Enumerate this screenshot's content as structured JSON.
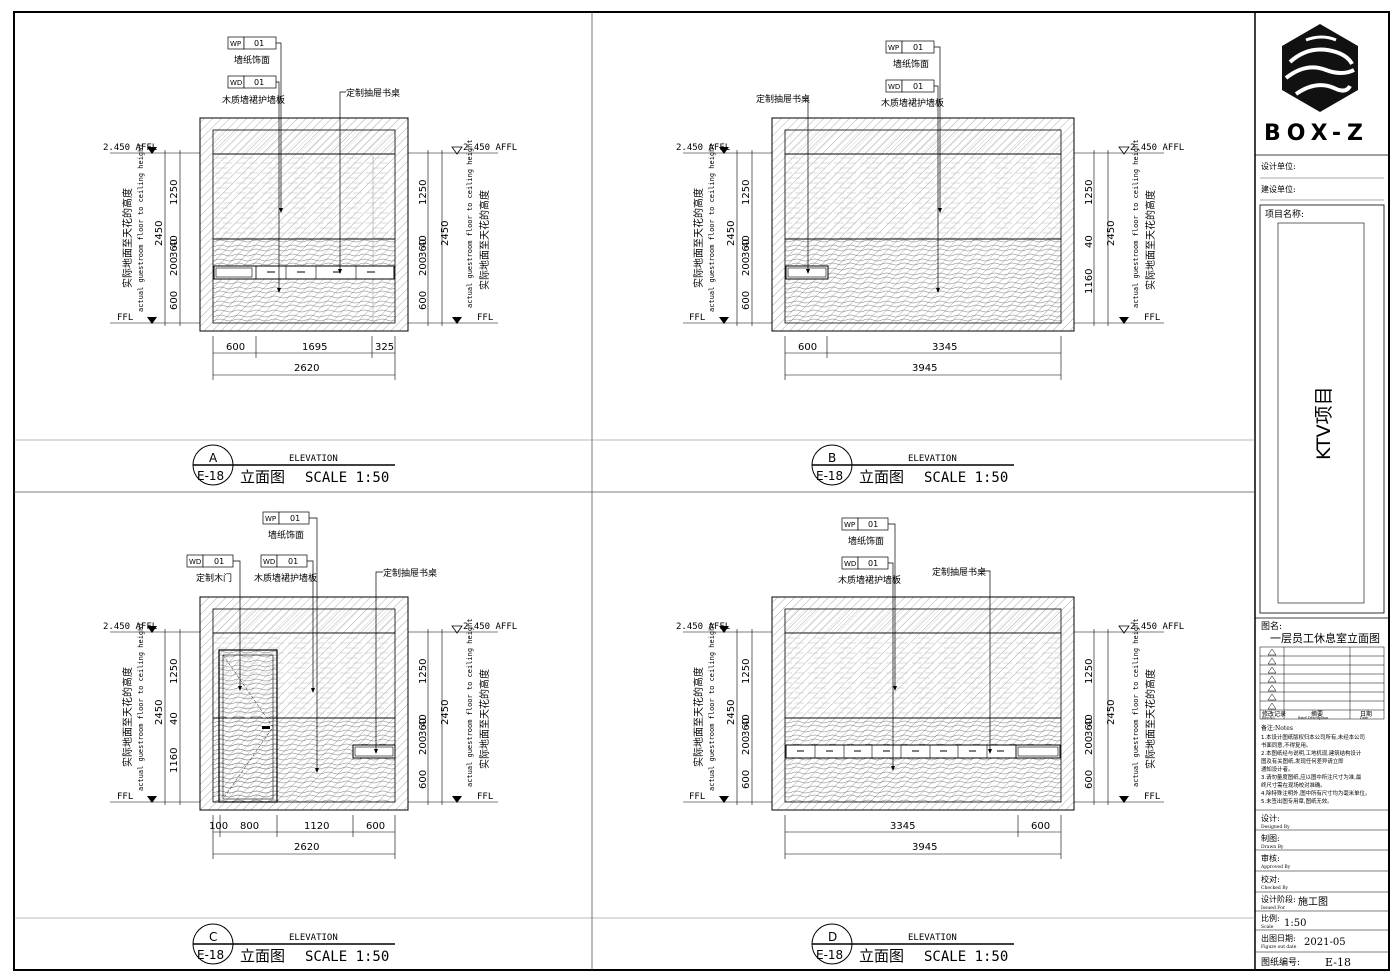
{
  "panels": [
    {
      "id": "A",
      "sheet": "E-18",
      "title_en": "ELEVATION",
      "title_cn": "立面图",
      "scale": "SCALE 1:50",
      "affl_left": "2.450 AFFL",
      "affl_right": "2.450 AFFL",
      "ffl_left": "FFL",
      "ffl_right": "FFL",
      "dims_left": {
        "overall": "2450",
        "segments": [
          "1250",
          "40",
          "360",
          "200",
          "600"
        ]
      },
      "dims_right": {
        "overall": "2450",
        "segments": [
          "1250",
          "40",
          "360",
          "200",
          "600"
        ]
      },
      "side_label_cn": "实际地面至天花的高度",
      "side_label_en": "actual guestroom floor to ceiling height",
      "bottom_dims": [
        "600",
        "1695",
        "325"
      ],
      "bottom_total": "2620",
      "tags": [
        {
          "code": "WP",
          "num": "01",
          "label": "墙纸饰面"
        },
        {
          "code": "WD",
          "num": "01",
          "label": "木质墙裙护墙板"
        }
      ],
      "callouts": [
        "定制抽屉书桌"
      ]
    },
    {
      "id": "B",
      "sheet": "E-18",
      "title_en": "ELEVATION",
      "title_cn": "立面图",
      "scale": "SCALE 1:50",
      "affl_left": "2.450 AFFL",
      "affl_right": "2.450 AFFL",
      "ffl_left": "FFL",
      "ffl_right": "FFL",
      "dims_left": {
        "overall": "2450",
        "segments": [
          "1250",
          "40",
          "360",
          "200",
          "600"
        ]
      },
      "dims_right": {
        "overall": "2450",
        "segments": [
          "1250",
          "40",
          "1160"
        ]
      },
      "side_label_cn": "实际地面至天花的高度",
      "side_label_en": "actual guestroom floor to ceiling height",
      "bottom_dims": [
        "600",
        "3345"
      ],
      "bottom_total": "3945",
      "tags": [
        {
          "code": "WP",
          "num": "01",
          "label": "墙纸饰面"
        },
        {
          "code": "WD",
          "num": "01",
          "label": "木质墙裙护墙板"
        }
      ],
      "callouts": [
        "定制抽屉书桌"
      ]
    },
    {
      "id": "C",
      "sheet": "E-18",
      "title_en": "ELEVATION",
      "title_cn": "立面图",
      "scale": "SCALE 1:50",
      "affl_left": "2.450 AFFL",
      "affl_right": "2.450 AFFL",
      "ffl_left": "FFL",
      "ffl_right": "FFL",
      "dims_left": {
        "overall": "2450",
        "segments": [
          "1250",
          "40",
          "1160"
        ]
      },
      "dims_right": {
        "overall": "2450",
        "segments": [
          "1250",
          "40",
          "360",
          "200",
          "600"
        ]
      },
      "side_label_cn": "实际地面至天花的高度",
      "side_label_en": "actual guestroom floor to ceiling height",
      "bottom_dims": [
        "100",
        "800",
        "1120",
        "600"
      ],
      "bottom_total": "2620",
      "tags": [
        {
          "code": "WP",
          "num": "01",
          "label": "墙纸饰面"
        },
        {
          "code": "WD",
          "num": "01",
          "label": "定制木门"
        },
        {
          "code": "WD",
          "num": "01",
          "label": "木质墙裙护墙板"
        }
      ],
      "callouts": [
        "定制抽屉书桌"
      ]
    },
    {
      "id": "D",
      "sheet": "E-18",
      "title_en": "ELEVATION",
      "title_cn": "立面图",
      "scale": "SCALE 1:50",
      "affl_left": "2.450 AFFL",
      "affl_right": "2.450 AFFL",
      "ffl_left": "FFL",
      "ffl_right": "FFL",
      "dims_left": {
        "overall": "2450",
        "segments": [
          "1250",
          "40",
          "360",
          "200",
          "600"
        ]
      },
      "dims_right": {
        "overall": "2450",
        "segments": [
          "1250",
          "40",
          "360",
          "200",
          "600"
        ]
      },
      "side_label_cn": "实际地面至天花的高度",
      "side_label_en": "actual guestroom floor to ceiling height",
      "bottom_dims": [
        "3345",
        "600"
      ],
      "bottom_total": "3945",
      "tags": [
        {
          "code": "WP",
          "num": "01",
          "label": "墙纸饰面"
        },
        {
          "code": "WD",
          "num": "01",
          "label": "木质墙裙护墙板"
        }
      ],
      "callouts": [
        "定制抽屉书桌"
      ]
    }
  ],
  "title_block": {
    "logo_text": "BOX-Z",
    "design_unit_label": "设计单位:",
    "client_label": "建设单位:",
    "project_label": "项目名称:",
    "project_name": "KTV项目",
    "drawing_name_label": "图名:",
    "drawing_name": "一层员工休息室立面图",
    "revision_headers": [
      "修改记录",
      "摘要",
      "日期"
    ],
    "revision_headers_en": [
      "Rev.No.",
      "Brief Description",
      "Date"
    ],
    "notes_title": "备注:Notes",
    "notes": [
      "1.本设计图纸版权归本公司所有,未经本公司",
      "书面同意,不得复用。",
      "2.本图纸经与说明,工地机现,建筑结构设计",
      "图及有关图纸,发现任何差异请立即",
      "通知设计者。",
      "3.请勿量度图纸,应以图中所注尺寸为准,最",
      "终尺寸需在现场校对准确。",
      "4.除特殊注明外,图中所有尺寸均为毫米单位。",
      "5.未签出图专用章,图纸无效。"
    ],
    "designed_label": "设计:",
    "designed_label_en": "Designed By",
    "drawn_label": "制图:",
    "drawn_label_en": "Drawn By",
    "approved_label": "审核:",
    "approved_label_en": "Approved By",
    "checked_label": "校对:",
    "checked_label_en": "Checked By",
    "issue_label": "设计阶段:",
    "issue_label_en": "Issued For",
    "issue_value": "施工图",
    "scale_label": "比例:",
    "scale_label_en": "Scale",
    "scale_value": "1:50",
    "date_label": "出图日期:",
    "date_label_en": "Figure out date",
    "date_value": "2021-05",
    "sheet_label": "图纸编号:",
    "sheet_value": "E-18"
  }
}
